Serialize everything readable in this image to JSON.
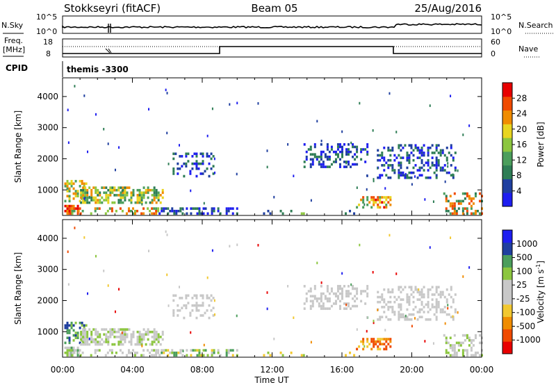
{
  "header": {
    "title": "Stokkseyri (fitACF)",
    "beam": "Beam 05",
    "date": "25/Aug/2016"
  },
  "noise_panel": {
    "left_label": "N.Sky",
    "right_label": "N.Search",
    "left_ticks": [
      "10^5",
      "10^0"
    ],
    "right_ticks": [
      "10^5",
      "10^0"
    ]
  },
  "freq_panel": {
    "left_label_1": "Freq.",
    "left_label_2": "[MHz]",
    "right_label": "Nave",
    "left_ticks": [
      "18",
      "8"
    ],
    "right_ticks": [
      "60",
      "0"
    ]
  },
  "cpid": {
    "label": "CPID",
    "value": "themis -3300"
  },
  "colors": {
    "power_scale": [
      "#1e1ef0",
      "#1f3f9f",
      "#2e7d55",
      "#4b9e5c",
      "#8cc63f",
      "#e8d520",
      "#f08c00",
      "#f04a00",
      "#e80000"
    ],
    "velocity_scale": [
      "#e80000",
      "#f04a00",
      "#f08c00",
      "#f2c830",
      "#c8c8c8",
      "#c8c8c8",
      "#8cc63f",
      "#4b9e5c",
      "#1f3f9f",
      "#1e1ef0"
    ]
  },
  "chart_data": [
    {
      "type": "heatmap",
      "name": "Power",
      "ylabel": "Slant Range [km]",
      "xlabel": "Time UT",
      "x_ticks": [
        "00:00",
        "04:00",
        "08:00",
        "12:00",
        "16:00",
        "20:00",
        "00:00"
      ],
      "xlim_hours": [
        0,
        24
      ],
      "y_ticks": [
        1000,
        2000,
        3000,
        4000
      ],
      "ylim": [
        180,
        4600
      ],
      "colorbar_label": "Power [dB]",
      "colorbar_ticks": [
        4,
        8,
        12,
        16,
        20,
        24,
        28
      ],
      "colorbar_range": [
        0,
        32
      ]
    },
    {
      "type": "heatmap",
      "name": "Velocity",
      "ylabel": "Slant Range [km]",
      "xlabel": "Time UT",
      "x_ticks": [
        "00:00",
        "04:00",
        "08:00",
        "12:00",
        "16:00",
        "20:00",
        "00:00"
      ],
      "xlim_hours": [
        0,
        24
      ],
      "y_ticks": [
        1000,
        2000,
        3000,
        4000
      ],
      "ylim": [
        180,
        4600
      ],
      "colorbar_label": "Velocity [m s^-1]",
      "colorbar_ticks": [
        "1000",
        "500",
        "100",
        "25",
        "-25",
        "-100",
        "-500",
        "-1000"
      ]
    }
  ],
  "time_axis_label": "Time UT"
}
